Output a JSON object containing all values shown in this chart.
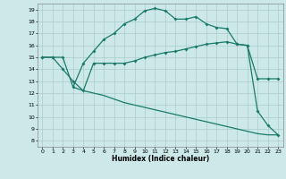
{
  "xlabel": "Humidex (Indice chaleur)",
  "ylabel": "",
  "background_color": "#cce8e8",
  "grid_color": "#aacccc",
  "line_color": "#1a7a6a",
  "xlim": [
    -0.5,
    23.5
  ],
  "ylim": [
    7.5,
    19.5
  ],
  "xticks": [
    0,
    1,
    2,
    3,
    4,
    5,
    6,
    7,
    8,
    9,
    10,
    11,
    12,
    13,
    14,
    15,
    16,
    17,
    18,
    19,
    20,
    21,
    22,
    23
  ],
  "yticks": [
    8,
    9,
    10,
    11,
    12,
    13,
    14,
    15,
    16,
    17,
    18,
    19
  ],
  "curve1_x": [
    0,
    1,
    2,
    3,
    4,
    5,
    6,
    7,
    8,
    9,
    10,
    11,
    12,
    13,
    14,
    15,
    16,
    17,
    18,
    19,
    20,
    21,
    22,
    23
  ],
  "curve1_y": [
    15,
    15,
    15,
    12.5,
    14.5,
    15.5,
    16.5,
    17.0,
    17.8,
    18.2,
    18.9,
    19.1,
    18.9,
    18.2,
    18.2,
    18.4,
    17.8,
    17.5,
    17.4,
    16.1,
    16.0,
    10.5,
    9.3,
    8.5
  ],
  "curve2_x": [
    0,
    1,
    2,
    3,
    4,
    5,
    6,
    7,
    8,
    9,
    10,
    11,
    12,
    13,
    14,
    15,
    16,
    17,
    18,
    19,
    20,
    21,
    22,
    23
  ],
  "curve2_y": [
    15,
    15,
    14,
    13.0,
    12.2,
    14.5,
    14.5,
    14.5,
    14.5,
    14.7,
    15.0,
    15.2,
    15.4,
    15.5,
    15.7,
    15.9,
    16.1,
    16.2,
    16.3,
    16.1,
    16.0,
    13.2,
    13.2,
    13.2
  ],
  "curve3_x": [
    3,
    4,
    5,
    6,
    7,
    8,
    9,
    10,
    11,
    12,
    13,
    14,
    15,
    16,
    17,
    18,
    19,
    20,
    21,
    22,
    23
  ],
  "curve3_y": [
    12.5,
    12.2,
    12.0,
    11.8,
    11.5,
    11.2,
    11.0,
    10.8,
    10.6,
    10.4,
    10.2,
    10.0,
    9.8,
    9.6,
    9.4,
    9.2,
    9.0,
    8.8,
    8.6,
    8.5,
    8.5
  ]
}
